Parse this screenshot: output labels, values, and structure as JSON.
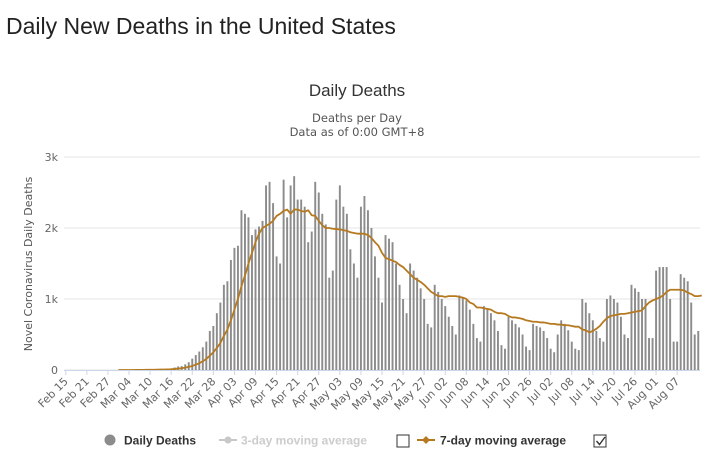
{
  "page_title": "Daily New Deaths in the United States",
  "colors": {
    "bars": "#8c8c8c",
    "ma7": "#b5791f",
    "ma3_inactive": "#c8c8c8",
    "grid": "#e6e6e6",
    "text": "#333333",
    "axis_text": "#666666"
  },
  "chart_data": {
    "type": "bar",
    "title": "Daily Deaths",
    "subtitle_line1": "Deaths per Day",
    "subtitle_line2": "Data as of 0:00 GMT+8",
    "ylabel": "Novel Coronavirus Daily Deaths",
    "xlabel": "",
    "ylim": [
      0,
      3000
    ],
    "yticks": [
      0,
      1000,
      2000,
      3000
    ],
    "ytick_labels": [
      "0",
      "1k",
      "2k",
      "3k"
    ],
    "grid": true,
    "legend_position": "bottom",
    "x_start": "2020-02-15",
    "x_end": "2020-08-10",
    "xtick_labels": [
      "Feb 15",
      "Feb 21",
      "Feb 27",
      "Mar 04",
      "Mar 10",
      "Mar 16",
      "Mar 22",
      "Mar 28",
      "Apr 03",
      "Apr 09",
      "Apr 15",
      "Apr 21",
      "Apr 27",
      "May 03",
      "May 09",
      "May 15",
      "May 21",
      "May 27",
      "Jun 02",
      "Jun 08",
      "Jun 14",
      "Jun 20",
      "Jun 26",
      "Jul 02",
      "Jul 08",
      "Jul 14",
      "Jul 20",
      "Jul 26",
      "Aug 01",
      "Aug 07"
    ],
    "legend": [
      {
        "name": "Daily Deaths",
        "active": true
      },
      {
        "name": "3-day moving average",
        "active": false
      },
      {
        "name": "7-day moving average",
        "active": true
      }
    ],
    "series": [
      {
        "name": "Daily Deaths",
        "values": [
          0,
          0,
          0,
          0,
          0,
          0,
          0,
          0,
          0,
          0,
          0,
          0,
          0,
          0,
          0,
          1,
          0,
          1,
          2,
          1,
          3,
          4,
          2,
          5,
          8,
          4,
          10,
          12,
          13,
          20,
          23,
          35,
          50,
          55,
          80,
          110,
          160,
          210,
          260,
          320,
          400,
          550,
          620,
          800,
          950,
          1200,
          1250,
          1550,
          1720,
          1750,
          2250,
          2200,
          2150,
          1900,
          1980,
          2020,
          2100,
          2600,
          2650,
          2350,
          1600,
          1500,
          2680,
          2150,
          2600,
          2730,
          2400,
          2400,
          2300,
          1800,
          1950,
          2650,
          2500,
          2200,
          2050,
          1300,
          1400,
          2400,
          2600,
          2300,
          2200,
          1700,
          1500,
          1300,
          2300,
          2450,
          2250,
          2000,
          1600,
          1300,
          950,
          1900,
          1850,
          1800,
          1500,
          1200,
          1000,
          800,
          1500,
          1400,
          1300,
          1150,
          1000,
          650,
          600,
          1200,
          1100,
          1000,
          900,
          750,
          620,
          500,
          1050,
          1020,
          980,
          850,
          650,
          450,
          400,
          900,
          850,
          800,
          700,
          550,
          350,
          300,
          750,
          700,
          650,
          600,
          500,
          330,
          280,
          650,
          620,
          600,
          550,
          450,
          300,
          250,
          500,
          700,
          650,
          560,
          400,
          300,
          280,
          1000,
          950,
          800,
          700,
          550,
          450,
          400,
          1000,
          1050,
          1000,
          950,
          750,
          500,
          450,
          1200,
          1150,
          1100,
          1000,
          1000,
          450,
          450,
          1400,
          1450,
          1450,
          1450,
          1000,
          400,
          400,
          1350,
          1300,
          1250,
          950,
          500,
          550
        ]
      },
      {
        "name": "7-day moving average",
        "values": [
          null,
          null,
          null,
          null,
          null,
          null,
          null,
          null,
          null,
          null,
          null,
          null,
          null,
          null,
          null,
          0,
          0,
          0,
          0,
          0,
          1,
          2,
          2,
          3,
          4,
          4,
          5,
          6,
          7,
          9,
          11,
          15,
          20,
          25,
          33,
          44,
          57,
          75,
          96,
          122,
          157,
          200,
          250,
          310,
          380,
          480,
          570,
          700,
          850,
          1000,
          1180,
          1330,
          1500,
          1650,
          1800,
          1920,
          2000,
          2030,
          2060,
          2100,
          2170,
          2200,
          2240,
          2260,
          2200,
          2260,
          2260,
          2240,
          2230,
          2250,
          2180,
          2170,
          2100,
          2040,
          2000,
          2000,
          1990,
          1985,
          1980,
          1970,
          1960,
          1940,
          1930,
          1920,
          1920,
          1920,
          1900,
          1860,
          1800,
          1750,
          1650,
          1580,
          1560,
          1540,
          1520,
          1480,
          1450,
          1400,
          1350,
          1300,
          1270,
          1240,
          1200,
          1150,
          1100,
          1070,
          1040,
          1040,
          1030,
          1040,
          1040,
          1040,
          1030,
          1020,
          1000,
          950,
          930,
          880,
          880,
          870,
          860,
          850,
          820,
          800,
          800,
          790,
          760,
          740,
          740,
          730,
          720,
          700,
          690,
          680,
          680,
          670,
          670,
          660,
          650,
          650,
          640,
          640,
          630,
          630,
          620,
          610,
          610,
          570,
          560,
          530,
          550,
          580,
          620,
          680,
          730,
          760,
          770,
          780,
          790,
          790,
          800,
          810,
          820,
          830,
          840,
          900,
          950,
          980,
          1000,
          1020,
          1050,
          1100,
          1130,
          1130,
          1130,
          1130,
          1120,
          1090,
          1070,
          1040,
          1040,
          1050
        ]
      }
    ]
  }
}
